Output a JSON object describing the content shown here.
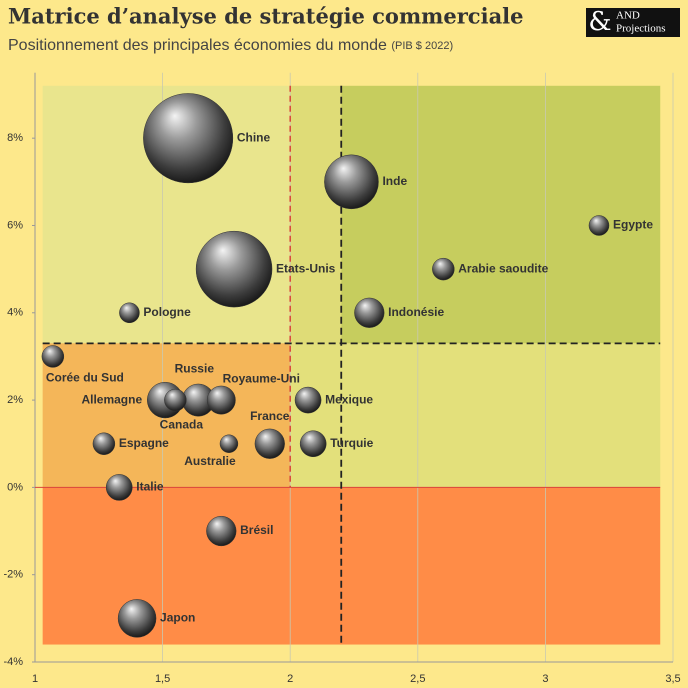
{
  "chart_data": {
    "type": "bubble",
    "title": "Matrice d’analyse de stratégie commerciale",
    "subtitle": "Positionnement des principales économies du monde",
    "subtitle_note": "(PIB $ 2022)",
    "labels": [
      "Chine",
      "Etats-Unis",
      "Inde",
      "Egypte",
      "Arabie saoudite",
      "Pologne",
      "Indonésie",
      "Corée du Sud",
      "Allemagne",
      "Russie",
      "Canada",
      "Royaume-Uni",
      "Mexique",
      "Espagne",
      "Australie",
      "France",
      "Turquie",
      "Italie",
      "Brésil",
      "Japon"
    ],
    "x": [
      1.6,
      1.78,
      2.24,
      3.21,
      2.6,
      1.37,
      2.31,
      1.07,
      1.51,
      1.64,
      1.55,
      1.73,
      2.07,
      1.27,
      1.76,
      1.92,
      2.09,
      1.33,
      1.73,
      1.4
    ],
    "values": [
      8,
      5,
      7,
      6,
      5,
      4,
      4,
      3,
      2,
      2,
      2,
      2,
      2,
      1,
      1,
      1,
      1,
      0,
      -1,
      -3
    ],
    "sizes": [
      20,
      14.4,
      7.3,
      1,
      1.2,
      1,
      2.2,
      1.2,
      3.2,
      2.6,
      1.2,
      2,
      1.7,
      1.2,
      0.8,
      2.2,
      1.7,
      1.7,
      2.2,
      3.6
    ],
    "xlim": [
      1,
      3.5
    ],
    "xticks": [
      {
        "value": 1,
        "label": "1"
      },
      {
        "value": 1.5,
        "label": "1,5"
      },
      {
        "value": 2,
        "label": "2"
      },
      {
        "value": 2.5,
        "label": "2,5"
      },
      {
        "value": 3,
        "label": "3"
      },
      {
        "value": 3.5,
        "label": "3,5"
      }
    ],
    "ylim": [
      -4,
      9.5
    ],
    "yticks": [
      {
        "value": -4,
        "label": "-4%"
      },
      {
        "value": -2,
        "label": "-2%"
      },
      {
        "value": 0,
        "label": "0%"
      },
      {
        "value": 2,
        "label": "2%"
      },
      {
        "value": 4,
        "label": "4%"
      },
      {
        "value": 6,
        "label": "6%"
      },
      {
        "value": 8,
        "label": "8%"
      }
    ],
    "grid": true
  },
  "logo": {
    "symbol": "&",
    "line1": "AND",
    "line2": "Projections"
  }
}
